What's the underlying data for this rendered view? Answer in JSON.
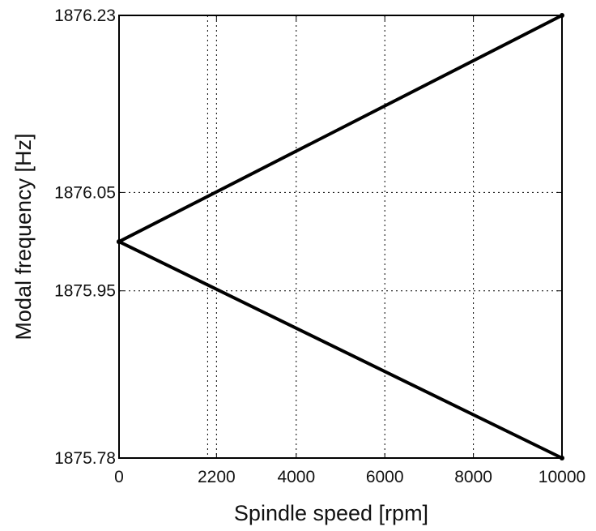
{
  "chart_data": {
    "type": "line",
    "title": "",
    "xlabel": "Spindle speed [rpm]",
    "ylabel": "Modal frequency [Hz]",
    "xlim": [
      0,
      10000
    ],
    "ylim": [
      1875.78,
      1876.23
    ],
    "x_ticks": [
      0,
      2200,
      4000,
      6000,
      8000,
      10000
    ],
    "x_tick_labels": [
      "0",
      "2200",
      "4000",
      "6000",
      "8000",
      "10000"
    ],
    "x_grid_extra": [
      2000
    ],
    "y_ticks": [
      1875.78,
      1875.95,
      1876.05,
      1876.23
    ],
    "y_tick_labels": [
      "1875.78",
      "1875.95",
      "1876.05",
      "1876.23"
    ],
    "grid": true,
    "grid_style": "dotted",
    "legend": false,
    "line_color": "#000000",
    "series": [
      {
        "x": [
          0,
          10000
        ],
        "y": [
          1876.0,
          1876.23
        ]
      },
      {
        "x": [
          0,
          10000
        ],
        "y": [
          1876.0,
          1875.78
        ]
      }
    ]
  }
}
